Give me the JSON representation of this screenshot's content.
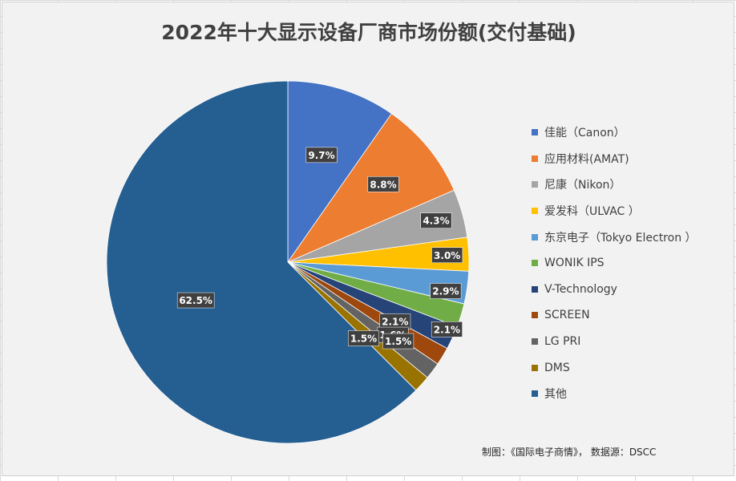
{
  "chart_data": {
    "type": "pie",
    "title": "2022年十大显示设备厂商市场份额(交付基础)",
    "categories": [
      "佳能（Canon）",
      "应用材料(AMAT)",
      "尼康（Nikon）",
      "爱发科（ULVAC ）",
      "东京电子（Tokyo Electron ）",
      "WONIK IPS",
      "V-Technology",
      "SCREEN",
      "LG PRI",
      "DMS",
      "其他"
    ],
    "values": [
      9.7,
      8.8,
      4.3,
      3.0,
      2.9,
      2.1,
      2.1,
      1.6,
      1.5,
      1.5,
      62.5
    ],
    "data_labels": [
      "9.7%",
      "8.8%",
      "4.3%",
      "3.0%",
      "2.9%",
      "2.1%",
      "2.1%",
      "1.6%",
      "1.5%",
      "1.5%",
      "62.5%"
    ],
    "colors": [
      "#4472c4",
      "#ed7d31",
      "#a5a5a5",
      "#ffc000",
      "#5b9bd5",
      "#70ad47",
      "#264478",
      "#9e480e",
      "#636363",
      "#997300",
      "#255e91"
    ],
    "legend_position": "right"
  },
  "credit": "制图：《国际电子商情》， 数据源：DSCC"
}
